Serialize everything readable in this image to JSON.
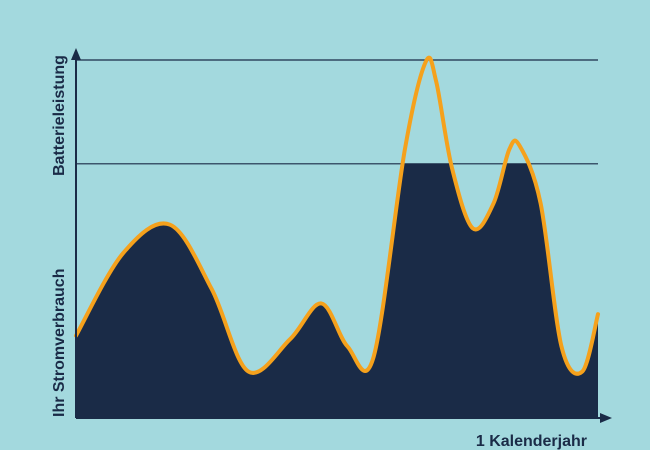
{
  "colors": {
    "background": "#a3d9de",
    "fill": "#1a2b47",
    "line": "#f5a11c",
    "axis": "#1a2b47"
  },
  "chart_data": {
    "type": "area",
    "ylabel_bottom": "Ihr Stromverbrauch",
    "ylabel_top": "Batterieleistung",
    "xlabel": "1 Kalenderjahr",
    "xlim": [
      0,
      100
    ],
    "ylim": [
      0,
      100
    ],
    "reference_lines": [
      {
        "y": 71
      },
      {
        "y": 100
      }
    ],
    "fill_cap": 71,
    "consumption_curve": {
      "x": [
        0,
        9,
        18,
        26,
        33,
        41,
        47,
        52,
        57,
        63,
        67,
        69,
        72,
        76,
        80,
        83,
        85,
        89,
        93,
        97,
        100
      ],
      "y": [
        23,
        46,
        54,
        36,
        13,
        22,
        32,
        20,
        17,
        75,
        99.5,
        94,
        70,
        53,
        60,
        75,
        76,
        60,
        20,
        13,
        29
      ]
    }
  }
}
